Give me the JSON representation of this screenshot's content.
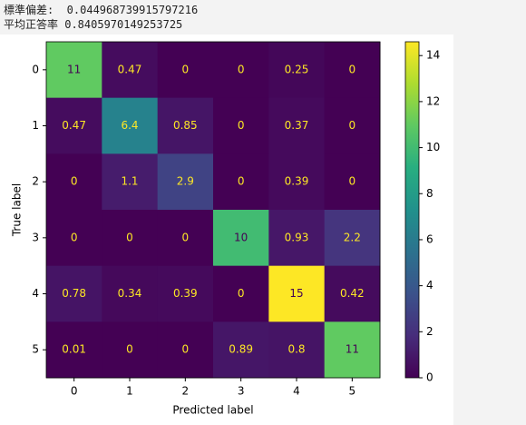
{
  "output_lines": [
    "標準偏差:  0.044968739915797216",
    "平均正答率 0.8405970149253725"
  ],
  "chart_data": {
    "type": "heatmap",
    "x_categories": [
      "0",
      "1",
      "2",
      "3",
      "4",
      "5"
    ],
    "y_categories": [
      "0",
      "1",
      "2",
      "3",
      "4",
      "5"
    ],
    "xlabel": "Predicted label",
    "ylabel": "True label",
    "values": [
      [
        11,
        0.47,
        0,
        0,
        0.25,
        0
      ],
      [
        0.47,
        6.4,
        0.85,
        0,
        0.37,
        0
      ],
      [
        0,
        1.1,
        2.9,
        0,
        0.39,
        0
      ],
      [
        0,
        0,
        0,
        10,
        0.93,
        2.2
      ],
      [
        0.78,
        0.34,
        0.39,
        0,
        14.6,
        0.42
      ],
      [
        0.01,
        0,
        0,
        0.89,
        0.8,
        11
      ]
    ],
    "value_labels": [
      [
        "11",
        "0.47",
        "0",
        "0",
        "0.25",
        "0"
      ],
      [
        "0.47",
        "6.4",
        "0.85",
        "0",
        "0.37",
        "0"
      ],
      [
        "0",
        "1.1",
        "2.9",
        "0",
        "0.39",
        "0"
      ],
      [
        "0",
        "0",
        "0",
        "10",
        "0.93",
        "2.2"
      ],
      [
        "0.78",
        "0.34",
        "0.39",
        "0",
        "15",
        "0.42"
      ],
      [
        "0.01",
        "0",
        "0",
        "0.89",
        "0.8",
        "11"
      ]
    ],
    "colormap": "viridis",
    "zlim": [
      0,
      14.6
    ],
    "zticks": [
      0,
      2,
      4,
      6,
      8,
      10,
      12,
      14
    ]
  }
}
